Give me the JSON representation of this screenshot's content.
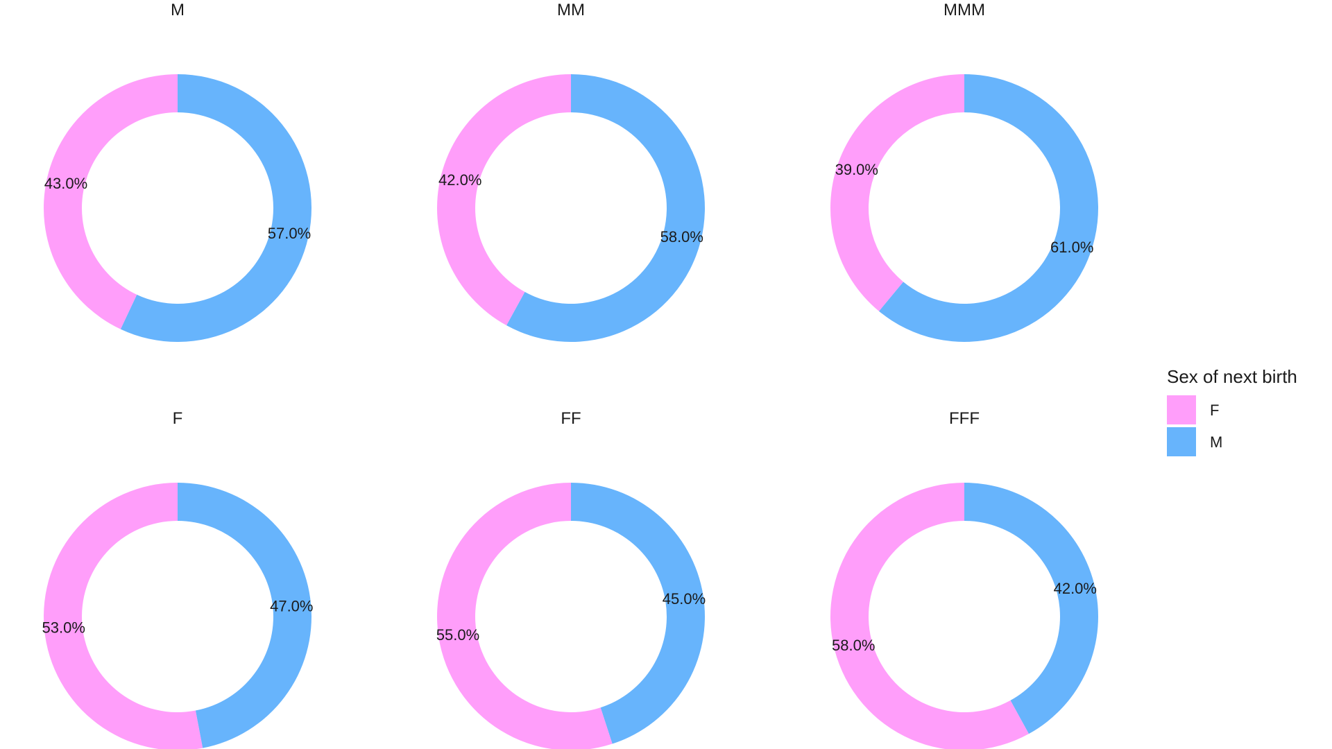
{
  "chart_data": {
    "type": "pie",
    "variant": "donut",
    "legend": {
      "title": "Sex of next birth",
      "position": "right",
      "entries": [
        {
          "key": "F",
          "color": "#FF9EFA"
        },
        {
          "key": "M",
          "color": "#67B4FC"
        }
      ]
    },
    "panels": [
      {
        "title": "M",
        "slices": [
          {
            "label": "F",
            "value": 43.0,
            "text": "43.0%"
          },
          {
            "label": "M",
            "value": 57.0,
            "text": "57.0%"
          }
        ]
      },
      {
        "title": "MM",
        "slices": [
          {
            "label": "F",
            "value": 42.0,
            "text": "42.0%"
          },
          {
            "label": "M",
            "value": 58.0,
            "text": "58.0%"
          }
        ]
      },
      {
        "title": "MMM",
        "slices": [
          {
            "label": "F",
            "value": 39.0,
            "text": "39.0%"
          },
          {
            "label": "M",
            "value": 61.0,
            "text": "61.0%"
          }
        ]
      },
      {
        "title": "F",
        "slices": [
          {
            "label": "F",
            "value": 53.0,
            "text": "53.0%"
          },
          {
            "label": "M",
            "value": 47.0,
            "text": "47.0%"
          }
        ]
      },
      {
        "title": "FF",
        "slices": [
          {
            "label": "F",
            "value": 55.0,
            "text": "55.0%"
          },
          {
            "label": "M",
            "value": 45.0,
            "text": "45.0%"
          }
        ]
      },
      {
        "title": "FFF",
        "slices": [
          {
            "label": "F",
            "value": 58.0,
            "text": "58.0%"
          },
          {
            "label": "M",
            "value": 42.0,
            "text": "42.0%"
          }
        ]
      }
    ]
  }
}
